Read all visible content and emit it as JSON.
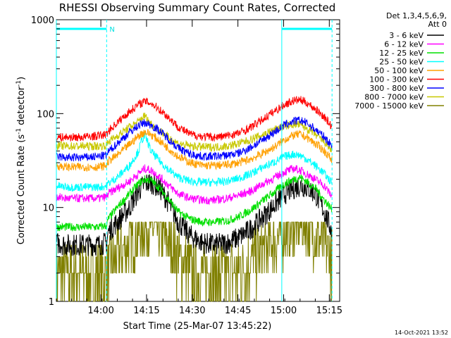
{
  "chart_data": {
    "type": "line",
    "title": "RHESSI Observing Summary Count Rates, Corrected",
    "xlabel": "Start Time (25-Mar-07 13:45:22)",
    "ylabel_main": "Corrected Count Rate (s",
    "ylabel_sup1": "-1",
    "ylabel_mid": " detector",
    "ylabel_sup2": "-1",
    "ylabel_end": ")",
    "yscale": "log",
    "ylim": [
      1,
      1000
    ],
    "xlim_minutes": [
      0,
      93
    ],
    "x_ticks": [
      {
        "label": "14:00",
        "minute": 14.6
      },
      {
        "label": "14:15",
        "minute": 29.6
      },
      {
        "label": "14:30",
        "minute": 44.6
      },
      {
        "label": "14:45",
        "minute": 59.6
      },
      {
        "label": "15:00",
        "minute": 74.6
      },
      {
        "label": "15:15",
        "minute": 89.6
      }
    ],
    "y_ticks": [
      {
        "label": "1",
        "value": 1
      },
      {
        "label": "10",
        "value": 10
      },
      {
        "label": "100",
        "value": 100
      },
      {
        "label": "1000",
        "value": 1000
      }
    ],
    "legend_header": [
      "Det 1,3,4,5,6,9,",
      "Att 0"
    ],
    "legend_position": "right",
    "timestamp": "14-Oct-2021 13:52",
    "night_marker_label": "N",
    "sun_intervals_minutes": [
      [
        0,
        16.5
      ],
      [
        74.0,
        90.5
      ]
    ],
    "series": [
      {
        "name": "3 - 6 keV",
        "color": "#000000",
        "x": [
          0,
          3,
          8,
          14,
          16.5,
          17,
          20,
          24,
          27,
          29,
          31,
          34,
          37,
          40,
          44,
          48,
          52,
          56,
          60,
          64,
          68,
          72,
          75,
          78,
          80,
          82,
          85,
          88,
          90.5
        ],
        "y": [
          4.2,
          4.0,
          4.0,
          4.0,
          4.2,
          5.5,
          7,
          10,
          15,
          18,
          18.5,
          16,
          11,
          7,
          5,
          4.2,
          4.0,
          4.2,
          4.8,
          6,
          8,
          11,
          14,
          16,
          17,
          16.5,
          14,
          9,
          5.5
        ]
      },
      {
        "name": "6 - 12 keV",
        "color": "#ff00ff",
        "x": [
          0,
          3,
          8,
          14,
          16.5,
          17,
          20,
          24,
          27,
          29,
          31,
          34,
          37,
          40,
          44,
          48,
          52,
          56,
          60,
          64,
          68,
          72,
          75,
          78,
          80,
          82,
          85,
          88,
          90.5
        ],
        "y": [
          13,
          12.5,
          12.5,
          12.5,
          13,
          14,
          16,
          19,
          23,
          26,
          25,
          21,
          17,
          14,
          12.5,
          12,
          12,
          12.5,
          13.5,
          15,
          18,
          21,
          24,
          26,
          25,
          23,
          20,
          17,
          13
        ]
      },
      {
        "name": "12 - 25 keV",
        "color": "#00e000",
        "x": [
          0,
          3,
          8,
          14,
          16.5,
          17,
          20,
          24,
          27,
          29,
          31,
          34,
          37,
          40,
          44,
          48,
          52,
          56,
          60,
          64,
          68,
          72,
          75,
          78,
          80,
          82,
          85,
          88,
          90.5
        ],
        "y": [
          6.2,
          6.2,
          6.2,
          6.2,
          6.4,
          7.5,
          10,
          14,
          18,
          20,
          19.5,
          16,
          12,
          9,
          7.5,
          7,
          7,
          7.2,
          8,
          9.5,
          12,
          15,
          18,
          20,
          21,
          19,
          16,
          12,
          9.5
        ]
      },
      {
        "name": "25 - 50 keV",
        "color": "#00ffff",
        "x": [
          0,
          3,
          8,
          14,
          16.5,
          17,
          20,
          24,
          27,
          28,
          29,
          30,
          31,
          34,
          37,
          40,
          44,
          48,
          52,
          56,
          60,
          64,
          68,
          72,
          75,
          78,
          80,
          82,
          85,
          88,
          90.5
        ],
        "y": [
          17,
          16.5,
          16.5,
          16.5,
          17,
          18,
          21,
          28,
          40,
          52,
          58,
          50,
          40,
          31,
          25,
          21,
          19,
          18.5,
          18.5,
          19,
          20.5,
          23,
          27,
          31,
          35,
          37,
          36,
          33,
          28,
          23,
          18
        ]
      },
      {
        "name": "50 - 100 keV",
        "color": "#ffa000",
        "x": [
          0,
          3,
          8,
          14,
          16.5,
          17,
          20,
          24,
          27,
          29,
          31,
          34,
          37,
          40,
          44,
          48,
          52,
          56,
          60,
          64,
          68,
          72,
          75,
          78,
          80,
          82,
          85,
          88,
          90.5
        ],
        "y": [
          28,
          27,
          27,
          27,
          28,
          31,
          36,
          47,
          58,
          64,
          60,
          51,
          42,
          35,
          30,
          28,
          28,
          28.5,
          30,
          33,
          38,
          45,
          53,
          59,
          60,
          56,
          48,
          40,
          32
        ]
      },
      {
        "name": "100 - 300 keV",
        "color": "#ff0000",
        "x": [
          0,
          3,
          8,
          14,
          16.5,
          17,
          20,
          24,
          27,
          29,
          31,
          34,
          37,
          40,
          44,
          48,
          52,
          56,
          60,
          64,
          68,
          72,
          75,
          78,
          80,
          82,
          85,
          88,
          90.5
        ],
        "y": [
          56,
          56,
          56,
          58,
          60,
          65,
          80,
          105,
          125,
          135,
          130,
          110,
          90,
          72,
          60,
          57,
          56,
          58,
          62,
          72,
          88,
          108,
          125,
          138,
          140,
          132,
          112,
          92,
          72
        ]
      },
      {
        "name": "300 - 800 keV",
        "color": "#0000ff",
        "x": [
          0,
          3,
          8,
          14,
          16.5,
          17,
          20,
          24,
          27,
          29,
          31,
          34,
          37,
          40,
          44,
          48,
          52,
          56,
          60,
          64,
          68,
          72,
          75,
          78,
          80,
          82,
          85,
          88,
          90.5
        ],
        "y": [
          35,
          34,
          34,
          35,
          36,
          39,
          48,
          63,
          75,
          80,
          76,
          65,
          53,
          43,
          37,
          35,
          35,
          36,
          38,
          44,
          53,
          65,
          76,
          83,
          85,
          80,
          68,
          56,
          45
        ]
      },
      {
        "name": "800 - 7000 keV",
        "color": "#c8c800",
        "x": [
          0,
          3,
          8,
          14,
          16.5,
          17,
          20,
          24,
          27,
          28,
          29,
          30,
          31,
          34,
          37,
          40,
          44,
          48,
          52,
          56,
          60,
          64,
          68,
          72,
          75,
          78,
          80,
          82,
          85,
          88,
          90.5
        ],
        "y": [
          46,
          45,
          45,
          45,
          46,
          50,
          58,
          72,
          82,
          90,
          95,
          86,
          78,
          66,
          55,
          48,
          45,
          44,
          44,
          45,
          48,
          53,
          60,
          68,
          74,
          77,
          76,
          70,
          60,
          50,
          40
        ]
      },
      {
        "name": "7000 - 15000 keV",
        "color": "#808000",
        "x": [
          0,
          3,
          8,
          14,
          16.5,
          17,
          20,
          24,
          27,
          29,
          31,
          34,
          37,
          40,
          44,
          48,
          52,
          56,
          60,
          64,
          68,
          72,
          75,
          78,
          80,
          82,
          85,
          88,
          90.5
        ],
        "y": [
          2.0,
          2.0,
          2.0,
          2.0,
          2.0,
          2.2,
          3,
          4,
          5.5,
          6.5,
          6.5,
          5.5,
          4,
          3,
          2.2,
          2,
          2,
          2,
          2.2,
          2.8,
          3.5,
          4.5,
          5.5,
          6.5,
          7,
          6.5,
          5,
          4,
          3
        ]
      }
    ]
  }
}
